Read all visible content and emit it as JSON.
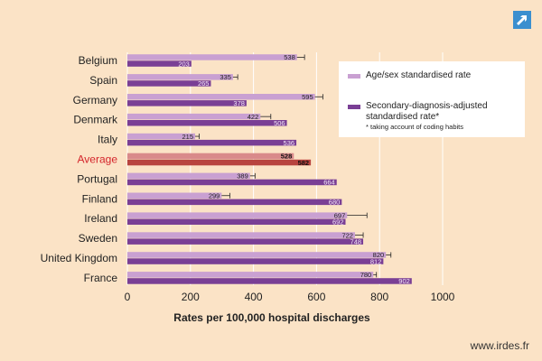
{
  "chart_data": {
    "type": "bar",
    "orientation": "horizontal",
    "title": "",
    "xlabel": "Rates per 100,000 hospital discharges",
    "ylabel": "",
    "xlim": [
      0,
      1000
    ],
    "xticks": [
      "0",
      "200",
      "400",
      "600",
      "800",
      "1000"
    ],
    "grid": true,
    "legend_position": "top-right",
    "categories": [
      "Belgium",
      "Spain",
      "Germany",
      "Denmark",
      "Italy",
      "Average",
      "Portugal",
      "Finland",
      "Ireland",
      "Sweden",
      "United Kingdom",
      "France"
    ],
    "highlight_category": "Average",
    "series": [
      {
        "name": "Age/sex standardised rate",
        "color": "#c9a0d2",
        "highlight_color": "#d98a8a",
        "values": [
          538,
          335,
          595,
          422,
          215,
          528,
          389,
          299,
          697,
          722,
          820,
          780
        ],
        "error_high": [
          562,
          350,
          620,
          455,
          228,
          null,
          405,
          325,
          760,
          748,
          836,
          790
        ]
      },
      {
        "name": "Secondary-diagnosis-adjusted standardised rate*",
        "color": "#7a3f95",
        "highlight_color": "#b8443f",
        "values": [
          203,
          265,
          378,
          506,
          536,
          582,
          664,
          680,
          692,
          748,
          812,
          902
        ]
      }
    ],
    "note": "* taking account of coding habits"
  },
  "footer": {
    "url": "www.irdes.fr"
  },
  "colors": {
    "background": "#fbe3c6",
    "highlight_label": "#d4232a",
    "label": "#222222"
  },
  "icons": {
    "corner": "expand-arrow-icon"
  }
}
